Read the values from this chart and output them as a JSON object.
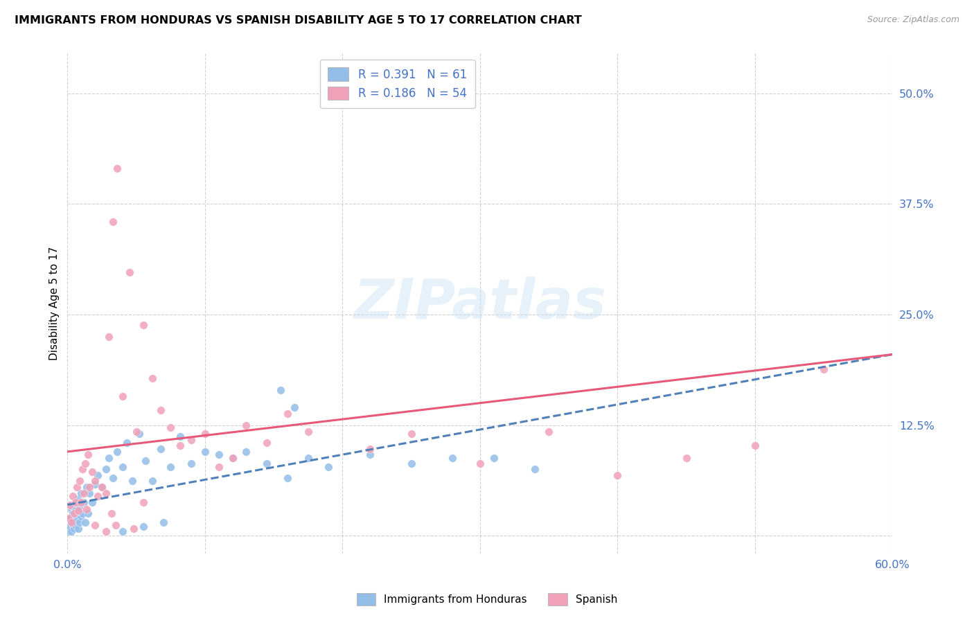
{
  "title": "IMMIGRANTS FROM HONDURAS VS SPANISH DISABILITY AGE 5 TO 17 CORRELATION CHART",
  "source": "Source: ZipAtlas.com",
  "ylabel": "Disability Age 5 to 17",
  "xlim": [
    0.0,
    0.6
  ],
  "ylim": [
    -0.02,
    0.545
  ],
  "yticks": [
    0.0,
    0.125,
    0.25,
    0.375,
    0.5
  ],
  "ytick_labels": [
    "",
    "12.5%",
    "25.0%",
    "37.5%",
    "50.0%"
  ],
  "xticks": [
    0.0,
    0.1,
    0.2,
    0.3,
    0.4,
    0.5,
    0.6
  ],
  "xtick_labels": [
    "0.0%",
    "",
    "",
    "",
    "",
    "",
    "60.0%"
  ],
  "legend1_label": "Immigrants from Honduras",
  "legend2_label": "Spanish",
  "r1": "0.391",
  "n1": "61",
  "r2": "0.186",
  "n2": "54",
  "color_blue": "#92BEE8",
  "color_pink": "#F0A0B8",
  "color_blue_line": "#5080B8",
  "color_pink_line": "#E85878",
  "color_axis_text": "#4472C4",
  "background_color": "#FFFFFF",
  "watermark": "ZIPatlas",
  "blue_x": [
    0.001,
    0.002,
    0.002,
    0.003,
    0.003,
    0.004,
    0.004,
    0.005,
    0.005,
    0.006,
    0.006,
    0.007,
    0.007,
    0.008,
    0.008,
    0.009,
    0.009,
    0.01,
    0.01,
    0.011,
    0.012,
    0.013,
    0.014,
    0.015,
    0.016,
    0.018,
    0.02,
    0.022,
    0.025,
    0.028,
    0.03,
    0.033,
    0.036,
    0.04,
    0.043,
    0.047,
    0.052,
    0.057,
    0.062,
    0.068,
    0.075,
    0.082,
    0.09,
    0.1,
    0.11,
    0.12,
    0.13,
    0.145,
    0.16,
    0.175,
    0.19,
    0.22,
    0.25,
    0.28,
    0.155,
    0.165,
    0.31,
    0.34,
    0.055,
    0.07,
    0.04
  ],
  "blue_y": [
    0.005,
    0.01,
    0.02,
    0.005,
    0.03,
    0.015,
    0.025,
    0.008,
    0.035,
    0.012,
    0.028,
    0.018,
    0.038,
    0.008,
    0.042,
    0.015,
    0.032,
    0.022,
    0.048,
    0.025,
    0.038,
    0.015,
    0.055,
    0.025,
    0.048,
    0.038,
    0.058,
    0.068,
    0.055,
    0.075,
    0.088,
    0.065,
    0.095,
    0.078,
    0.105,
    0.062,
    0.115,
    0.085,
    0.062,
    0.098,
    0.078,
    0.112,
    0.082,
    0.095,
    0.092,
    0.088,
    0.095,
    0.082,
    0.065,
    0.088,
    0.078,
    0.092,
    0.082,
    0.088,
    0.165,
    0.145,
    0.088,
    0.075,
    0.01,
    0.015,
    0.005
  ],
  "pink_x": [
    0.001,
    0.002,
    0.003,
    0.004,
    0.005,
    0.006,
    0.007,
    0.008,
    0.009,
    0.01,
    0.011,
    0.012,
    0.013,
    0.014,
    0.015,
    0.016,
    0.018,
    0.02,
    0.022,
    0.025,
    0.028,
    0.03,
    0.033,
    0.036,
    0.04,
    0.045,
    0.05,
    0.055,
    0.062,
    0.068,
    0.075,
    0.082,
    0.09,
    0.1,
    0.11,
    0.12,
    0.13,
    0.145,
    0.16,
    0.175,
    0.22,
    0.25,
    0.3,
    0.35,
    0.4,
    0.45,
    0.5,
    0.55,
    0.035,
    0.055,
    0.02,
    0.032,
    0.048,
    0.028
  ],
  "pink_y": [
    0.02,
    0.035,
    0.015,
    0.045,
    0.025,
    0.038,
    0.055,
    0.028,
    0.062,
    0.038,
    0.075,
    0.048,
    0.082,
    0.03,
    0.092,
    0.055,
    0.072,
    0.062,
    0.045,
    0.055,
    0.048,
    0.225,
    0.355,
    0.415,
    0.158,
    0.298,
    0.118,
    0.238,
    0.178,
    0.142,
    0.122,
    0.102,
    0.108,
    0.115,
    0.078,
    0.088,
    0.125,
    0.105,
    0.138,
    0.118,
    0.098,
    0.115,
    0.082,
    0.118,
    0.068,
    0.088,
    0.102,
    0.188,
    0.012,
    0.038,
    0.012,
    0.025,
    0.008,
    0.005
  ],
  "blue_line_x0": 0.0,
  "blue_line_y0": 0.035,
  "blue_line_x1": 0.6,
  "blue_line_y1": 0.205,
  "pink_line_x0": 0.0,
  "pink_line_y0": 0.095,
  "pink_line_x1": 0.6,
  "pink_line_y1": 0.205
}
